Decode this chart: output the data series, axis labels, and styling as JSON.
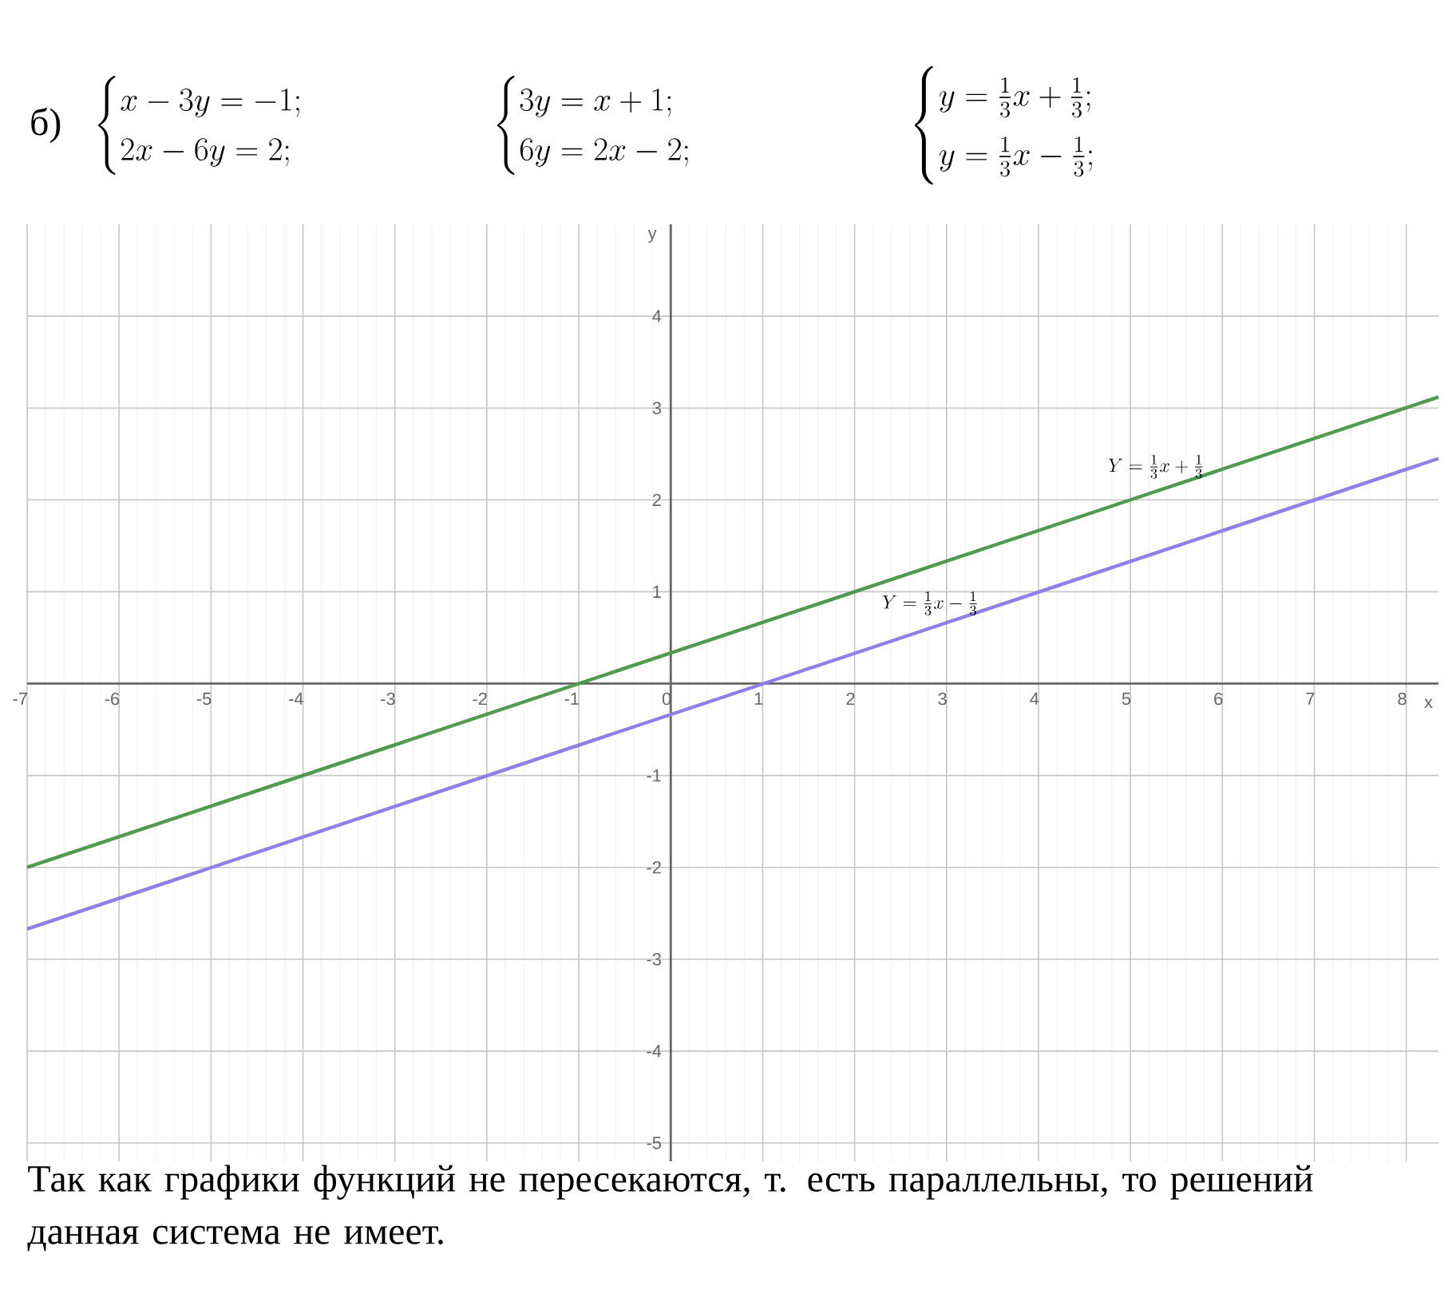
{
  "chart_data": {
    "type": "line",
    "title": "б)",
    "annotations": [
      "\\begin{cases}x-3y=-1;\\\\2x-6y=2;\\end{cases}",
      "\\begin{cases}3y=x+1;\\\\6y=2x-2;\\end{cases}",
      "\\begin{cases}y=\\frac{1}{3}x+\\frac{1}{3};\\\\[6pt]y=\\frac{1}{3}x-\\frac{1}{3};\\end{cases}",
      "Так как графики функций не пересекаются, т. есть параллельны, то решений данная система не имеет."
    ],
    "xlabel": "x",
    "ylabel": "y",
    "x": [
      -7,
      -1,
      2,
      5,
      8.35
    ],
    "series": [
      {
        "name": "Y=\\frac{1}{3}x+\\frac{1}{3}",
        "color": "#4f9a4f",
        "values": [
          -2,
          0,
          1,
          2,
          3.12
        ]
      },
      {
        "name": "Y=\\frac{1}{3}x-\\frac{1}{3}",
        "color": "#8f80e8",
        "values": [
          -2.67,
          -0.67,
          0.33,
          1.33,
          2.45
        ]
      }
    ],
    "xlim": [
      -7,
      8.35
    ],
    "ylim": [
      -5.2,
      5
    ],
    "xticks": [
      -7,
      -6,
      -5,
      -4,
      -3,
      -2,
      -1,
      0,
      1,
      2,
      3,
      4,
      5,
      6,
      7,
      8
    ],
    "yticks": [
      -5,
      -4,
      -3,
      -2,
      -1,
      1,
      2,
      3,
      4
    ],
    "grid": true,
    "line_style": "solid",
    "marker": "none"
  }
}
